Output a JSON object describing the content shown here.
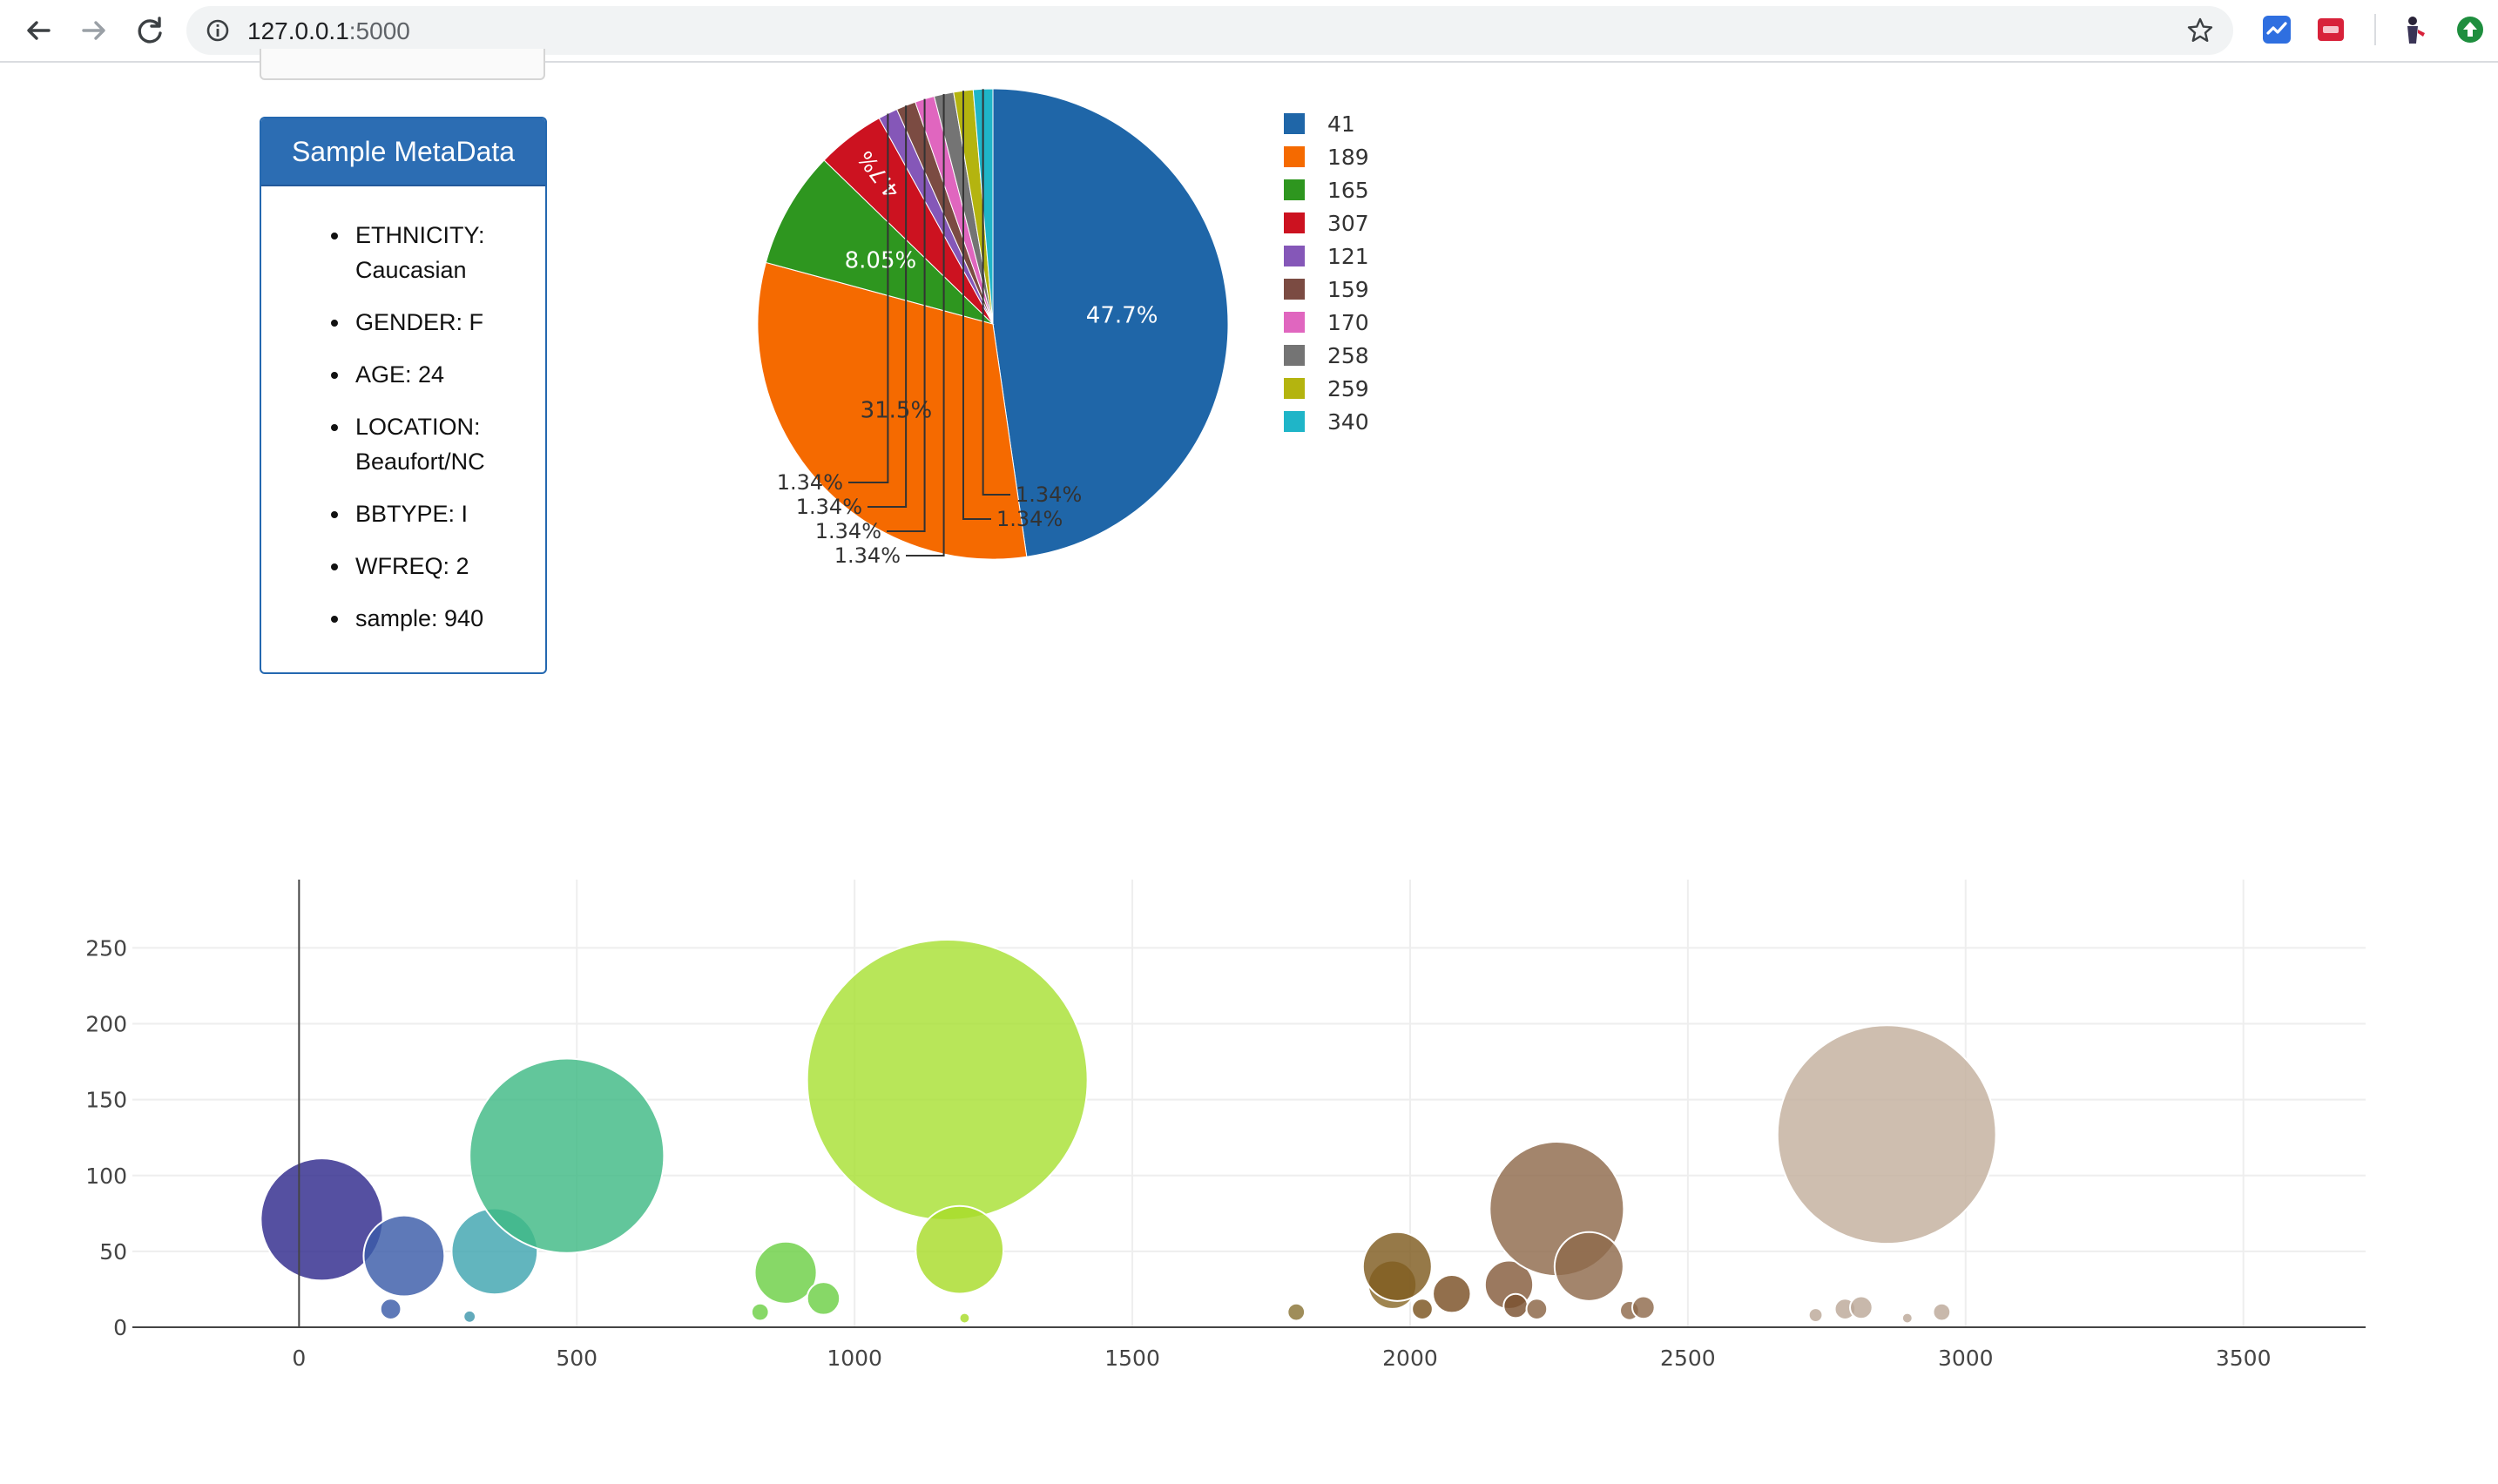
{
  "browser": {
    "url_host": "127.0.0.1",
    "url_port": ":5000"
  },
  "metadata": {
    "title": "Sample MetaData",
    "items": [
      [
        "ETHNICITY:",
        "Caucasian"
      ],
      [
        "GENDER: F"
      ],
      [
        "AGE: 24"
      ],
      [
        "LOCATION:",
        "Beaufort/NC"
      ],
      [
        "BBTYPE: I"
      ],
      [
        "WFREQ: 2"
      ],
      [
        "sample: 940"
      ]
    ]
  },
  "chart_data": [
    {
      "type": "pie",
      "labels": [
        "41",
        "189",
        "165",
        "307",
        "121",
        "159",
        "170",
        "258",
        "259",
        "340"
      ],
      "values": [
        47.7,
        31.5,
        8.05,
        4.7,
        1.34,
        1.34,
        1.34,
        1.34,
        1.34,
        1.34
      ],
      "value_labels": [
        "47.7%",
        "31.5%",
        "8.05%",
        "4.7%",
        "1.34%",
        "1.34%",
        "1.34%",
        "1.34%",
        "1.34%",
        "1.34%"
      ],
      "colors": [
        "#1f66a8",
        "#f56a00",
        "#2e961f",
        "#cc1220",
        "#8557b8",
        "#7b4b42",
        "#e066bf",
        "#747474",
        "#b4b40f",
        "#1fb5c8"
      ],
      "legend": "right"
    },
    {
      "type": "scatter",
      "marker": "bubble",
      "x_ticks": [
        0,
        500,
        1000,
        1500,
        2000,
        2500,
        3000,
        3500
      ],
      "y_ticks": [
        0,
        50,
        100,
        150,
        200,
        250
      ],
      "xlim": [
        -300,
        3720
      ],
      "ylim": [
        0,
        295
      ],
      "grid": true,
      "points": [
        {
          "x": 41,
          "y": 71,
          "c": "#302a8c"
        },
        {
          "x": 165,
          "y": 12,
          "c": "#3b5ba8"
        },
        {
          "x": 189,
          "y": 47,
          "c": "#3b5ba8"
        },
        {
          "x": 307,
          "y": 7,
          "c": "#3f97ac"
        },
        {
          "x": 352,
          "y": 50,
          "c": "#3fa5b0"
        },
        {
          "x": 482,
          "y": 113,
          "c": "#3fba85"
        },
        {
          "x": 830,
          "y": 10,
          "c": "#6cd045"
        },
        {
          "x": 876,
          "y": 36,
          "c": "#6cd045"
        },
        {
          "x": 944,
          "y": 19,
          "c": "#6cd045"
        },
        {
          "x": 1167,
          "y": 163,
          "c": "#a8e034"
        },
        {
          "x": 1189,
          "y": 51,
          "c": "#a8dc2a"
        },
        {
          "x": 1198,
          "y": 6,
          "c": "#a8dc2a"
        },
        {
          "x": 1795,
          "y": 10,
          "c": "#8a7436"
        },
        {
          "x": 1968,
          "y": 28,
          "c": "#8a6a2a"
        },
        {
          "x": 1977,
          "y": 40,
          "c": "#7f5c20"
        },
        {
          "x": 2022,
          "y": 12,
          "c": "#7a531e"
        },
        {
          "x": 2075,
          "y": 22,
          "c": "#7a4f25"
        },
        {
          "x": 2178,
          "y": 28,
          "c": "#855b3c"
        },
        {
          "x": 2190,
          "y": 14,
          "c": "#7a5030"
        },
        {
          "x": 2228,
          "y": 12,
          "c": "#8a6444"
        },
        {
          "x": 2264,
          "y": 78,
          "c": "#8f6a4c"
        },
        {
          "x": 2322,
          "y": 40,
          "c": "#8f6a4c"
        },
        {
          "x": 2395,
          "y": 11,
          "c": "#8f6a4c"
        },
        {
          "x": 2420,
          "y": 13,
          "c": "#8f6a4c"
        },
        {
          "x": 2730,
          "y": 8,
          "c": "#bca898"
        },
        {
          "x": 2783,
          "y": 12,
          "c": "#bca898"
        },
        {
          "x": 2812,
          "y": 13,
          "c": "#bca898"
        },
        {
          "x": 2858,
          "y": 127,
          "c": "#c3b09d"
        },
        {
          "x": 2895,
          "y": 6,
          "c": "#bca898"
        },
        {
          "x": 2957,
          "y": 10,
          "c": "#bca898"
        }
      ]
    }
  ]
}
